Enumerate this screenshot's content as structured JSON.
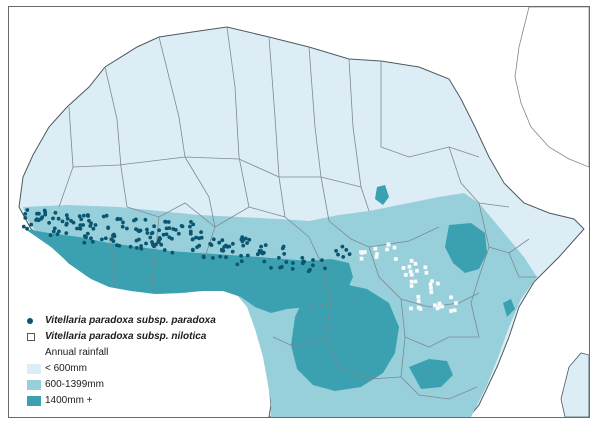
{
  "map": {
    "colors": {
      "land_low": "#dcedf6",
      "land_mid": "#97d0db",
      "land_high": "#3ba1b0",
      "ocean": "#ffffff",
      "border": "#7c8a92",
      "coast": "#4d5a60",
      "paradoxa": "#0b5570",
      "nilotica": "#ffffff"
    }
  },
  "legend": {
    "species": [
      {
        "label": "Vitellaria paradoxa subsp. paradoxa",
        "marker": "filled-dot"
      },
      {
        "label": "Vitellaria paradoxa subsp. nilotica",
        "marker": "open-square"
      }
    ],
    "rainfall_title": "Annual rainfall",
    "rainfall": [
      {
        "label": "< 600mm",
        "color": "#dcedf6"
      },
      {
        "label": "600-1399mm",
        "color": "#97d0db"
      },
      {
        "label": "1400mm +",
        "color": "#3ba1b0"
      }
    ]
  }
}
